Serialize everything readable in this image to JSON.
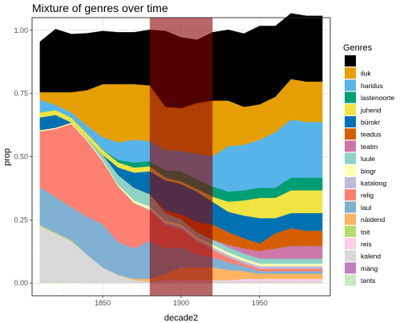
{
  "chart_data": {
    "type": "area",
    "title": "Mixture of genres over time",
    "xlabel": "decade2",
    "ylabel": "prop",
    "xlim": [
      1805,
      1995
    ],
    "ylim": [
      -0.05,
      1.05
    ],
    "x_ticks": [
      1850,
      1900,
      1950
    ],
    "y_ticks": [
      0.0,
      0.25,
      0.5,
      0.75,
      1.0
    ],
    "y_tick_labels": [
      "0.00",
      "0.25",
      "0.50",
      "0.75",
      "1.00"
    ],
    "grid": true,
    "legend_title": "Genres",
    "legend_position": "right",
    "x": [
      1810,
      1820,
      1830,
      1840,
      1850,
      1860,
      1870,
      1880,
      1890,
      1900,
      1910,
      1920,
      1930,
      1940,
      1950,
      1960,
      1970,
      1980,
      1990
    ],
    "series": [
      {
        "name": "tants",
        "color": "#c7e9c0",
        "values": [
          0.005,
          0.005,
          0.005,
          0.003,
          0.002,
          0.002,
          0.002,
          0.002,
          0.002,
          0.002,
          0.002,
          0.002,
          0.002,
          0.002,
          0.002,
          0.002,
          0.002,
          0.002,
          0.002
        ]
      },
      {
        "name": "mäng",
        "color": "#bf7fbf",
        "values": [
          0.0,
          0.0,
          0.0,
          0.0,
          0.0,
          0.0,
          0.0,
          0.0,
          0.0,
          0.0,
          0.0,
          0.0,
          0.0,
          0.0,
          0.0,
          0.0,
          0.0,
          0.0,
          0.0
        ]
      },
      {
        "name": "kalend",
        "color": "#d9d9d9",
        "values": [
          0.22,
          0.19,
          0.16,
          0.11,
          0.06,
          0.03,
          0.01,
          0.005,
          0.005,
          0.005,
          0.005,
          0.005,
          0.005,
          0.005,
          0.005,
          0.005,
          0.005,
          0.005,
          0.005
        ]
      },
      {
        "name": "reis",
        "color": "#fccde5",
        "values": [
          0.0,
          0.0,
          0.0,
          0.0,
          0.0,
          0.0,
          0.0,
          0.0,
          0.005,
          0.005,
          0.005,
          0.005,
          0.005,
          0.01,
          0.01,
          0.01,
          0.01,
          0.01,
          0.01
        ]
      },
      {
        "name": "toit",
        "color": "#b3de69",
        "values": [
          0.005,
          0.005,
          0.005,
          0.0,
          0.0,
          0.0,
          0.0,
          0.0,
          0.0,
          0.0,
          0.0,
          0.0,
          0.0,
          0.0,
          0.0,
          0.0,
          0.0,
          0.0,
          0.0
        ]
      },
      {
        "name": "näidend",
        "color": "#fdb462",
        "values": [
          0.0,
          0.0,
          0.0,
          0.0,
          0.0,
          0.0,
          0.005,
          0.01,
          0.025,
          0.05,
          0.05,
          0.05,
          0.04,
          0.03,
          0.02,
          0.02,
          0.02,
          0.02,
          0.02
        ]
      },
      {
        "name": "laul",
        "color": "#80b1d3",
        "values": [
          0.15,
          0.14,
          0.13,
          0.15,
          0.17,
          0.13,
          0.12,
          0.15,
          0.1,
          0.08,
          0.05,
          0.04,
          0.03,
          0.02,
          0.01,
          0.01,
          0.01,
          0.01,
          0.01
        ]
      },
      {
        "name": "relig",
        "color": "#fb8072",
        "values": [
          0.22,
          0.27,
          0.33,
          0.3,
          0.25,
          0.22,
          0.18,
          0.12,
          0.09,
          0.07,
          0.05,
          0.03,
          0.02,
          0.01,
          0.01,
          0.01,
          0.01,
          0.01,
          0.01
        ]
      },
      {
        "name": "kataloog",
        "color": "#bebada",
        "values": [
          0.0,
          0.0,
          0.0,
          0.0,
          0.0,
          0.0,
          0.0,
          0.005,
          0.01,
          0.01,
          0.01,
          0.01,
          0.01,
          0.01,
          0.01,
          0.01,
          0.01,
          0.01,
          0.01
        ]
      },
      {
        "name": "biogr",
        "color": "#ffffb3",
        "values": [
          0.005,
          0.005,
          0.005,
          0.005,
          0.005,
          0.005,
          0.01,
          0.01,
          0.01,
          0.01,
          0.01,
          0.01,
          0.01,
          0.01,
          0.01,
          0.01,
          0.01,
          0.01,
          0.01
        ]
      },
      {
        "name": "luule",
        "color": "#8dd3c7",
        "values": [
          0.0,
          0.0,
          0.0,
          0.005,
          0.02,
          0.04,
          0.05,
          0.05,
          0.03,
          0.02,
          0.02,
          0.02,
          0.02,
          0.02,
          0.02,
          0.02,
          0.02,
          0.02,
          0.02
        ]
      },
      {
        "name": "teatm",
        "color": "#cc79a7",
        "values": [
          0.0,
          0.0,
          0.0,
          0.0,
          0.0,
          0.0,
          0.0,
          0.0,
          0.0,
          0.0,
          0.0,
          0.0,
          0.01,
          0.02,
          0.03,
          0.04,
          0.05,
          0.05,
          0.05
        ]
      },
      {
        "name": "teadus",
        "color": "#d55e00",
        "values": [
          0.0,
          0.0,
          0.0,
          0.0,
          0.0,
          0.0,
          0.0,
          0.0,
          0.01,
          0.02,
          0.04,
          0.06,
          0.05,
          0.04,
          0.03,
          0.06,
          0.07,
          0.06,
          0.06
        ]
      },
      {
        "name": "bürokr",
        "color": "#0072b2",
        "values": [
          0.05,
          0.05,
          0.0,
          0.0,
          0.0,
          0.03,
          0.06,
          0.09,
          0.12,
          0.12,
          0.12,
          0.09,
          0.08,
          0.09,
          0.1,
          0.06,
          0.06,
          0.07,
          0.07
        ]
      },
      {
        "name": "juhend",
        "color": "#f0e442",
        "values": [
          0.02,
          0.02,
          0.02,
          0.02,
          0.02,
          0.02,
          0.02,
          0.02,
          0.01,
          0.01,
          0.01,
          0.02,
          0.04,
          0.06,
          0.08,
          0.08,
          0.09,
          0.09,
          0.09
        ]
      },
      {
        "name": "lastenoorte",
        "color": "#009e73",
        "values": [
          0.0,
          0.0,
          0.0,
          0.0,
          0.0,
          0.01,
          0.02,
          0.02,
          0.03,
          0.04,
          0.04,
          0.04,
          0.04,
          0.04,
          0.04,
          0.04,
          0.05,
          0.05,
          0.05
        ]
      },
      {
        "name": "haridus",
        "color": "#56b4e9",
        "values": [
          0.05,
          0.02,
          0.02,
          0.03,
          0.05,
          0.07,
          0.09,
          0.08,
          0.08,
          0.08,
          0.1,
          0.12,
          0.18,
          0.18,
          0.19,
          0.22,
          0.23,
          0.22,
          0.22
        ]
      },
      {
        "name": "iluk",
        "color": "#e69f00",
        "values": [
          0.03,
          0.05,
          0.08,
          0.14,
          0.21,
          0.23,
          0.22,
          0.22,
          0.17,
          0.17,
          0.2,
          0.22,
          0.18,
          0.15,
          0.14,
          0.14,
          0.16,
          0.16,
          0.16
        ]
      },
      {
        "name": "",
        "color": "#000000",
        "values": [
          0.2,
          0.25,
          0.23,
          0.225,
          0.21,
          0.205,
          0.205,
          0.22,
          0.3,
          0.28,
          0.25,
          0.27,
          0.28,
          0.29,
          0.31,
          0.28,
          0.26,
          0.26,
          0.26
        ]
      }
    ],
    "highlight": {
      "x_start": 1880,
      "x_end": 1920,
      "color": "#8b0000",
      "opacity": 0.6
    }
  }
}
